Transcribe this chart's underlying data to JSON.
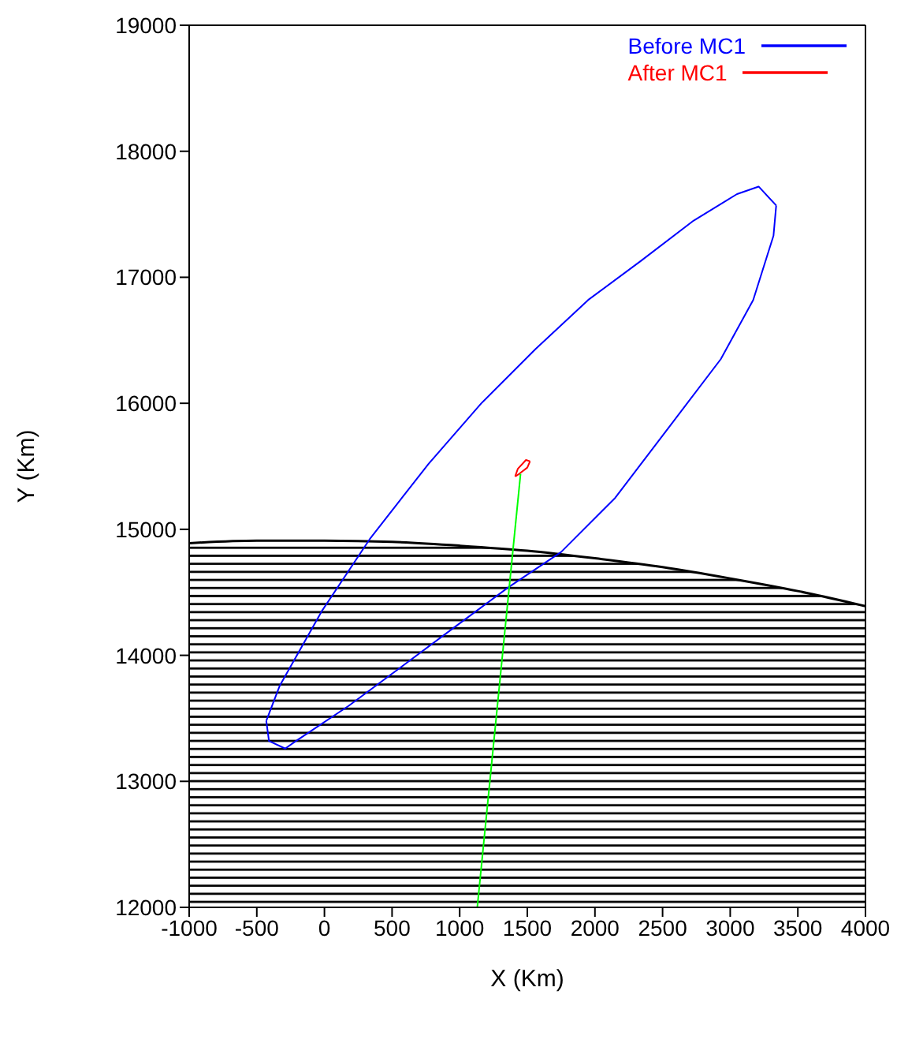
{
  "chart_data": {
    "type": "line",
    "xlabel": "X (Km)",
    "ylabel": "Y (Km)",
    "xlim": [
      -1000,
      4000
    ],
    "xticks": [
      -1000,
      -500,
      0,
      500,
      1000,
      1500,
      2000,
      2500,
      3000,
      3500,
      4000
    ],
    "ylim": [
      12000,
      19000
    ],
    "yticks": [
      12000,
      13000,
      14000,
      15000,
      16000,
      17000,
      18000,
      19000
    ],
    "grid": false,
    "legend": "top right",
    "marker": "none",
    "line_style": "solid",
    "series": [
      {
        "type": "area",
        "color": "#000000",
        "x": [
          -1000,
          -500,
          0,
          500,
          1000,
          1500,
          2000,
          2500,
          3000,
          3500,
          4000
        ],
        "values": [
          14890,
          14910,
          14910,
          14900,
          14870,
          14830,
          14770,
          14700,
          14610,
          14510,
          14390
        ]
      },
      {
        "name": "Before MC1",
        "color": "#0000ff",
        "x": [
          -430,
          -330,
          -20,
          340,
          770,
          1160,
          1560,
          1950,
          2340,
          2730,
          3050,
          3210,
          3340
        ],
        "values": [
          13480,
          13760,
          14350,
          14930,
          15520,
          16000,
          16430,
          16820,
          17130,
          17450,
          17660,
          17720,
          17570
        ]
      },
      {
        "color": "#0000ff",
        "x": [
          -430,
          -410,
          -290,
          -210,
          180,
          570,
          970,
          1360,
          1750,
          2150,
          2540,
          2930,
          3170,
          3320,
          3340
        ],
        "values": [
          13480,
          13320,
          13260,
          13320,
          13600,
          13910,
          14230,
          14540,
          14820,
          15250,
          15800,
          16350,
          16820,
          17330,
          17570
        ]
      },
      {
        "name": "After MC1",
        "color": "#ff0000",
        "x": [
          1410,
          1430,
          1490,
          1520
        ],
        "values": [
          15420,
          15480,
          15550,
          15540
        ]
      },
      {
        "color": "#ff0000",
        "x": [
          1410,
          1440,
          1500,
          1520
        ],
        "values": [
          15420,
          15440,
          15490,
          15540
        ]
      },
      {
        "color": "#00ff00",
        "x": [
          1130,
          1450
        ],
        "values": [
          12000,
          15440
        ]
      }
    ]
  }
}
